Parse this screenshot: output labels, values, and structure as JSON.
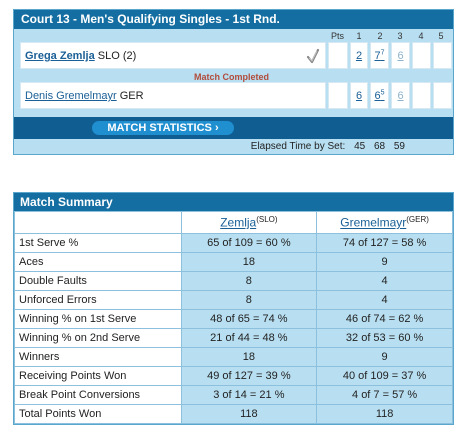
{
  "scoreboard": {
    "title": "Court 13 - Men's Qualifying Singles - 1st Rnd.",
    "columns": {
      "pts": "Pts",
      "sets": [
        "1",
        "2",
        "3",
        "4",
        "5"
      ]
    },
    "player1": {
      "name": "Grega Zemlja",
      "info": "SLO (2)",
      "set1": "2",
      "set2": "7",
      "set2_tb": "7",
      "set3": "6"
    },
    "player2": {
      "name": "Denis Gremelmayr",
      "info": "GER",
      "set1": "6",
      "set2": "6",
      "set2_tb": "5",
      "set3": "6"
    },
    "status": "Match Completed",
    "stats_button": "MATCH STATISTICS",
    "elapsed_label": "Elapsed Time by Set:",
    "elapsed_times": [
      "45",
      "68",
      "59"
    ]
  },
  "summary": {
    "title": "Match Summary",
    "player1": {
      "name": "Zemlja",
      "country": "(SLO)"
    },
    "player2": {
      "name": "Gremelmayr",
      "country": "(GER)"
    },
    "rows": [
      {
        "label": "1st Serve %",
        "p1": "65 of 109 = 60 %",
        "p2": "74 of 127 = 58 %"
      },
      {
        "label": "Aces",
        "p1": "18",
        "p2": "9"
      },
      {
        "label": "Double Faults",
        "p1": "8",
        "p2": "4"
      },
      {
        "label": "Unforced Errors",
        "p1": "8",
        "p2": "4"
      },
      {
        "label": "Winning % on 1st Serve",
        "p1": "48 of 65 = 74 %",
        "p2": "46 of 74 = 62 %"
      },
      {
        "label": "Winning % on 2nd Serve",
        "p1": "21 of 44 = 48 %",
        "p2": "32 of 53 = 60 %"
      },
      {
        "label": "Winners",
        "p1": "18",
        "p2": "9"
      },
      {
        "label": "Receiving Points Won",
        "p1": "49 of 127 = 39 %",
        "p2": "40 of 109 = 37 %"
      },
      {
        "label": "Break Point Conversions",
        "p1": "3 of 14 = 21 %",
        "p2": "4 of 7 = 57 %"
      },
      {
        "label": "Total Points Won",
        "p1": "118",
        "p2": "118"
      }
    ]
  }
}
